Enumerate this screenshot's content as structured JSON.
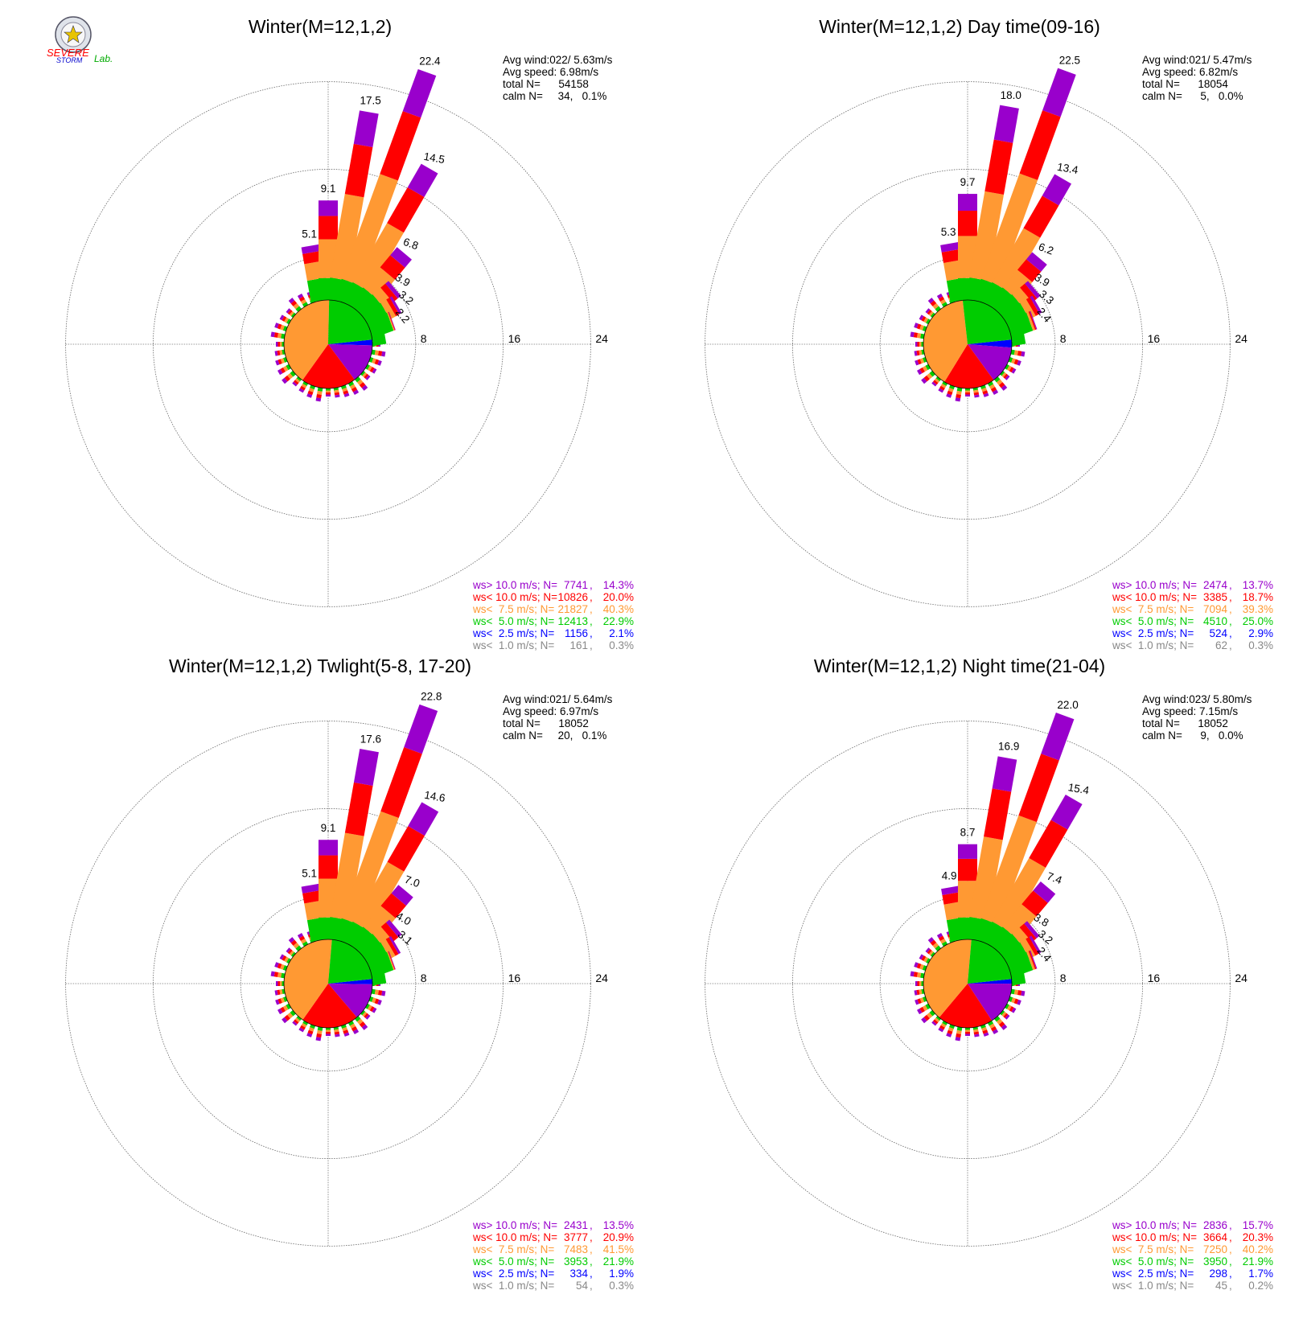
{
  "logo": {
    "lines": [
      "SEVERE",
      "STORM",
      "Lab."
    ]
  },
  "classes": [
    {
      "key": "gt10",
      "label": "ws> 10.0 m/s; N=",
      "color": "#9900cc"
    },
    {
      "key": "lt10",
      "label": "ws< 10.0 m/s; N=",
      "color": "#ff0000"
    },
    {
      "key": "lt75",
      "label": "ws<  7.5 m/s; N=",
      "color": "#ff9933"
    },
    {
      "key": "lt5",
      "label": "ws<  5.0 m/s; N=",
      "color": "#00cc00"
    },
    {
      "key": "lt25",
      "label": "ws<  2.5 m/s; N=",
      "color": "#0000ff"
    },
    {
      "key": "lt1",
      "label": "ws<  1.0 m/s; N=",
      "color": "#888888"
    }
  ],
  "chart_data": [
    {
      "type": "wind-rose",
      "title": "Winter(M=12,1,2)",
      "rings": [
        8,
        16,
        24
      ],
      "ring_labels": [
        "8",
        "16",
        "24"
      ],
      "stats": {
        "avg_wind": "Avg wind:022/ 5.63m/s",
        "avg_speed": "Avg speed: 6.98m/s",
        "total": "total N=      54158",
        "calm": "calm N=     34,   0.1%"
      },
      "directions_deg": [
        0,
        10,
        20,
        30,
        40,
        50,
        60,
        70,
        80
      ],
      "direction_totals": [
        9.1,
        17.5,
        22.4,
        14.5,
        6.8,
        3.9,
        3.2,
        2.2,
        1.2
      ],
      "bar_labels": [
        "9.1",
        "17.5",
        "22.4",
        "14.5",
        "6.8",
        "3.9",
        "3.2",
        "2.2",
        ""
      ],
      "extra_bar": {
        "direction_deg": -10,
        "total": 5.1,
        "label": "5.1"
      },
      "legend": [
        {
          "n": "7741",
          "pct": "14.3%"
        },
        {
          "n": "10826",
          "pct": "20.0%"
        },
        {
          "n": "21827",
          "pct": "40.3%"
        },
        {
          "n": "12413",
          "pct": "22.9%"
        },
        {
          "n": "1156",
          "pct": "2.1%"
        },
        {
          "n": "161",
          "pct": "0.3%"
        }
      ],
      "pie_pct": [
        14.3,
        20.0,
        40.3,
        22.9,
        2.1,
        0.3
      ]
    },
    {
      "type": "wind-rose",
      "title": "Winter(M=12,1,2) Day time(09-16)",
      "rings": [
        8,
        16,
        24
      ],
      "ring_labels": [
        "8",
        "16",
        "24"
      ],
      "stats": {
        "avg_wind": "Avg wind:021/ 5.47m/s",
        "avg_speed": "Avg speed: 6.82m/s",
        "total": "total N=      18054",
        "calm": "calm N=      5,   0.0%"
      },
      "directions_deg": [
        0,
        10,
        20,
        30,
        40,
        50,
        60,
        70,
        80
      ],
      "direction_totals": [
        9.7,
        18.0,
        22.5,
        13.4,
        6.2,
        3.9,
        3.3,
        2.4,
        1.2
      ],
      "bar_labels": [
        "9.7",
        "18.0",
        "22.5",
        "13.4",
        "6.2",
        "3.9",
        "3.3",
        "2.4",
        ""
      ],
      "extra_bar": {
        "direction_deg": -10,
        "total": 5.3,
        "label": "5.3"
      },
      "legend": [
        {
          "n": "2474",
          "pct": "13.7%"
        },
        {
          "n": "3385",
          "pct": "18.7%"
        },
        {
          "n": "7094",
          "pct": "39.3%"
        },
        {
          "n": "4510",
          "pct": "25.0%"
        },
        {
          "n": "524",
          "pct": "2.9%"
        },
        {
          "n": "62",
          "pct": "0.3%"
        }
      ],
      "pie_pct": [
        13.7,
        18.7,
        39.3,
        25.0,
        2.9,
        0.3
      ]
    },
    {
      "type": "wind-rose",
      "title": "Winter(M=12,1,2) Twlight(5-8, 17-20)",
      "rings": [
        8,
        16,
        24
      ],
      "ring_labels": [
        "8",
        "16",
        "24"
      ],
      "stats": {
        "avg_wind": "Avg wind:021/ 5.64m/s",
        "avg_speed": "Avg speed: 6.97m/s",
        "total": "total N=      18052",
        "calm": "calm N=     20,   0.1%"
      },
      "directions_deg": [
        0,
        10,
        20,
        30,
        40,
        50,
        60,
        70,
        80
      ],
      "direction_totals": [
        9.1,
        17.6,
        22.8,
        14.6,
        7.0,
        4.0,
        3.1,
        2.2,
        1.2
      ],
      "bar_labels": [
        "9.1",
        "17.6",
        "22.8",
        "14.6",
        "7.0",
        "4.0",
        "3.1",
        "",
        ""
      ],
      "extra_bar": {
        "direction_deg": -10,
        "total": 5.1,
        "label": "5.1"
      },
      "legend": [
        {
          "n": "2431",
          "pct": "13.5%"
        },
        {
          "n": "3777",
          "pct": "20.9%"
        },
        {
          "n": "7483",
          "pct": "41.5%"
        },
        {
          "n": "3953",
          "pct": "21.9%"
        },
        {
          "n": "334",
          "pct": "1.9%"
        },
        {
          "n": "54",
          "pct": "0.3%"
        }
      ],
      "pie_pct": [
        13.5,
        20.9,
        41.5,
        21.9,
        1.9,
        0.3
      ]
    },
    {
      "type": "wind-rose",
      "title": "Winter(M=12,1,2) Night time(21-04)",
      "rings": [
        8,
        16,
        24
      ],
      "ring_labels": [
        "8",
        "16",
        "24"
      ],
      "stats": {
        "avg_wind": "Avg wind:023/ 5.80m/s",
        "avg_speed": "Avg speed: 7.15m/s",
        "total": "total N=      18052",
        "calm": "calm N=      9,   0.0%"
      },
      "directions_deg": [
        0,
        10,
        20,
        30,
        40,
        50,
        60,
        70,
        80
      ],
      "direction_totals": [
        8.7,
        16.9,
        22.0,
        15.4,
        7.4,
        3.8,
        3.2,
        2.4,
        1.2
      ],
      "bar_labels": [
        "8.7",
        "16.9",
        "22.0",
        "15.4",
        "7.4",
        "3.8",
        "3.2",
        "2.4",
        ""
      ],
      "extra_bar": {
        "direction_deg": -10,
        "total": 4.9,
        "label": "4.9"
      },
      "legend": [
        {
          "n": "2836",
          "pct": "15.7%"
        },
        {
          "n": "3664",
          "pct": "20.3%"
        },
        {
          "n": "7250",
          "pct": "40.2%"
        },
        {
          "n": "3950",
          "pct": "21.9%"
        },
        {
          "n": "298",
          "pct": "1.7%"
        },
        {
          "n": "45",
          "pct": "0.2%"
        }
      ],
      "pie_pct": [
        15.7,
        20.3,
        40.2,
        21.9,
        1.7,
        0.2
      ]
    }
  ]
}
